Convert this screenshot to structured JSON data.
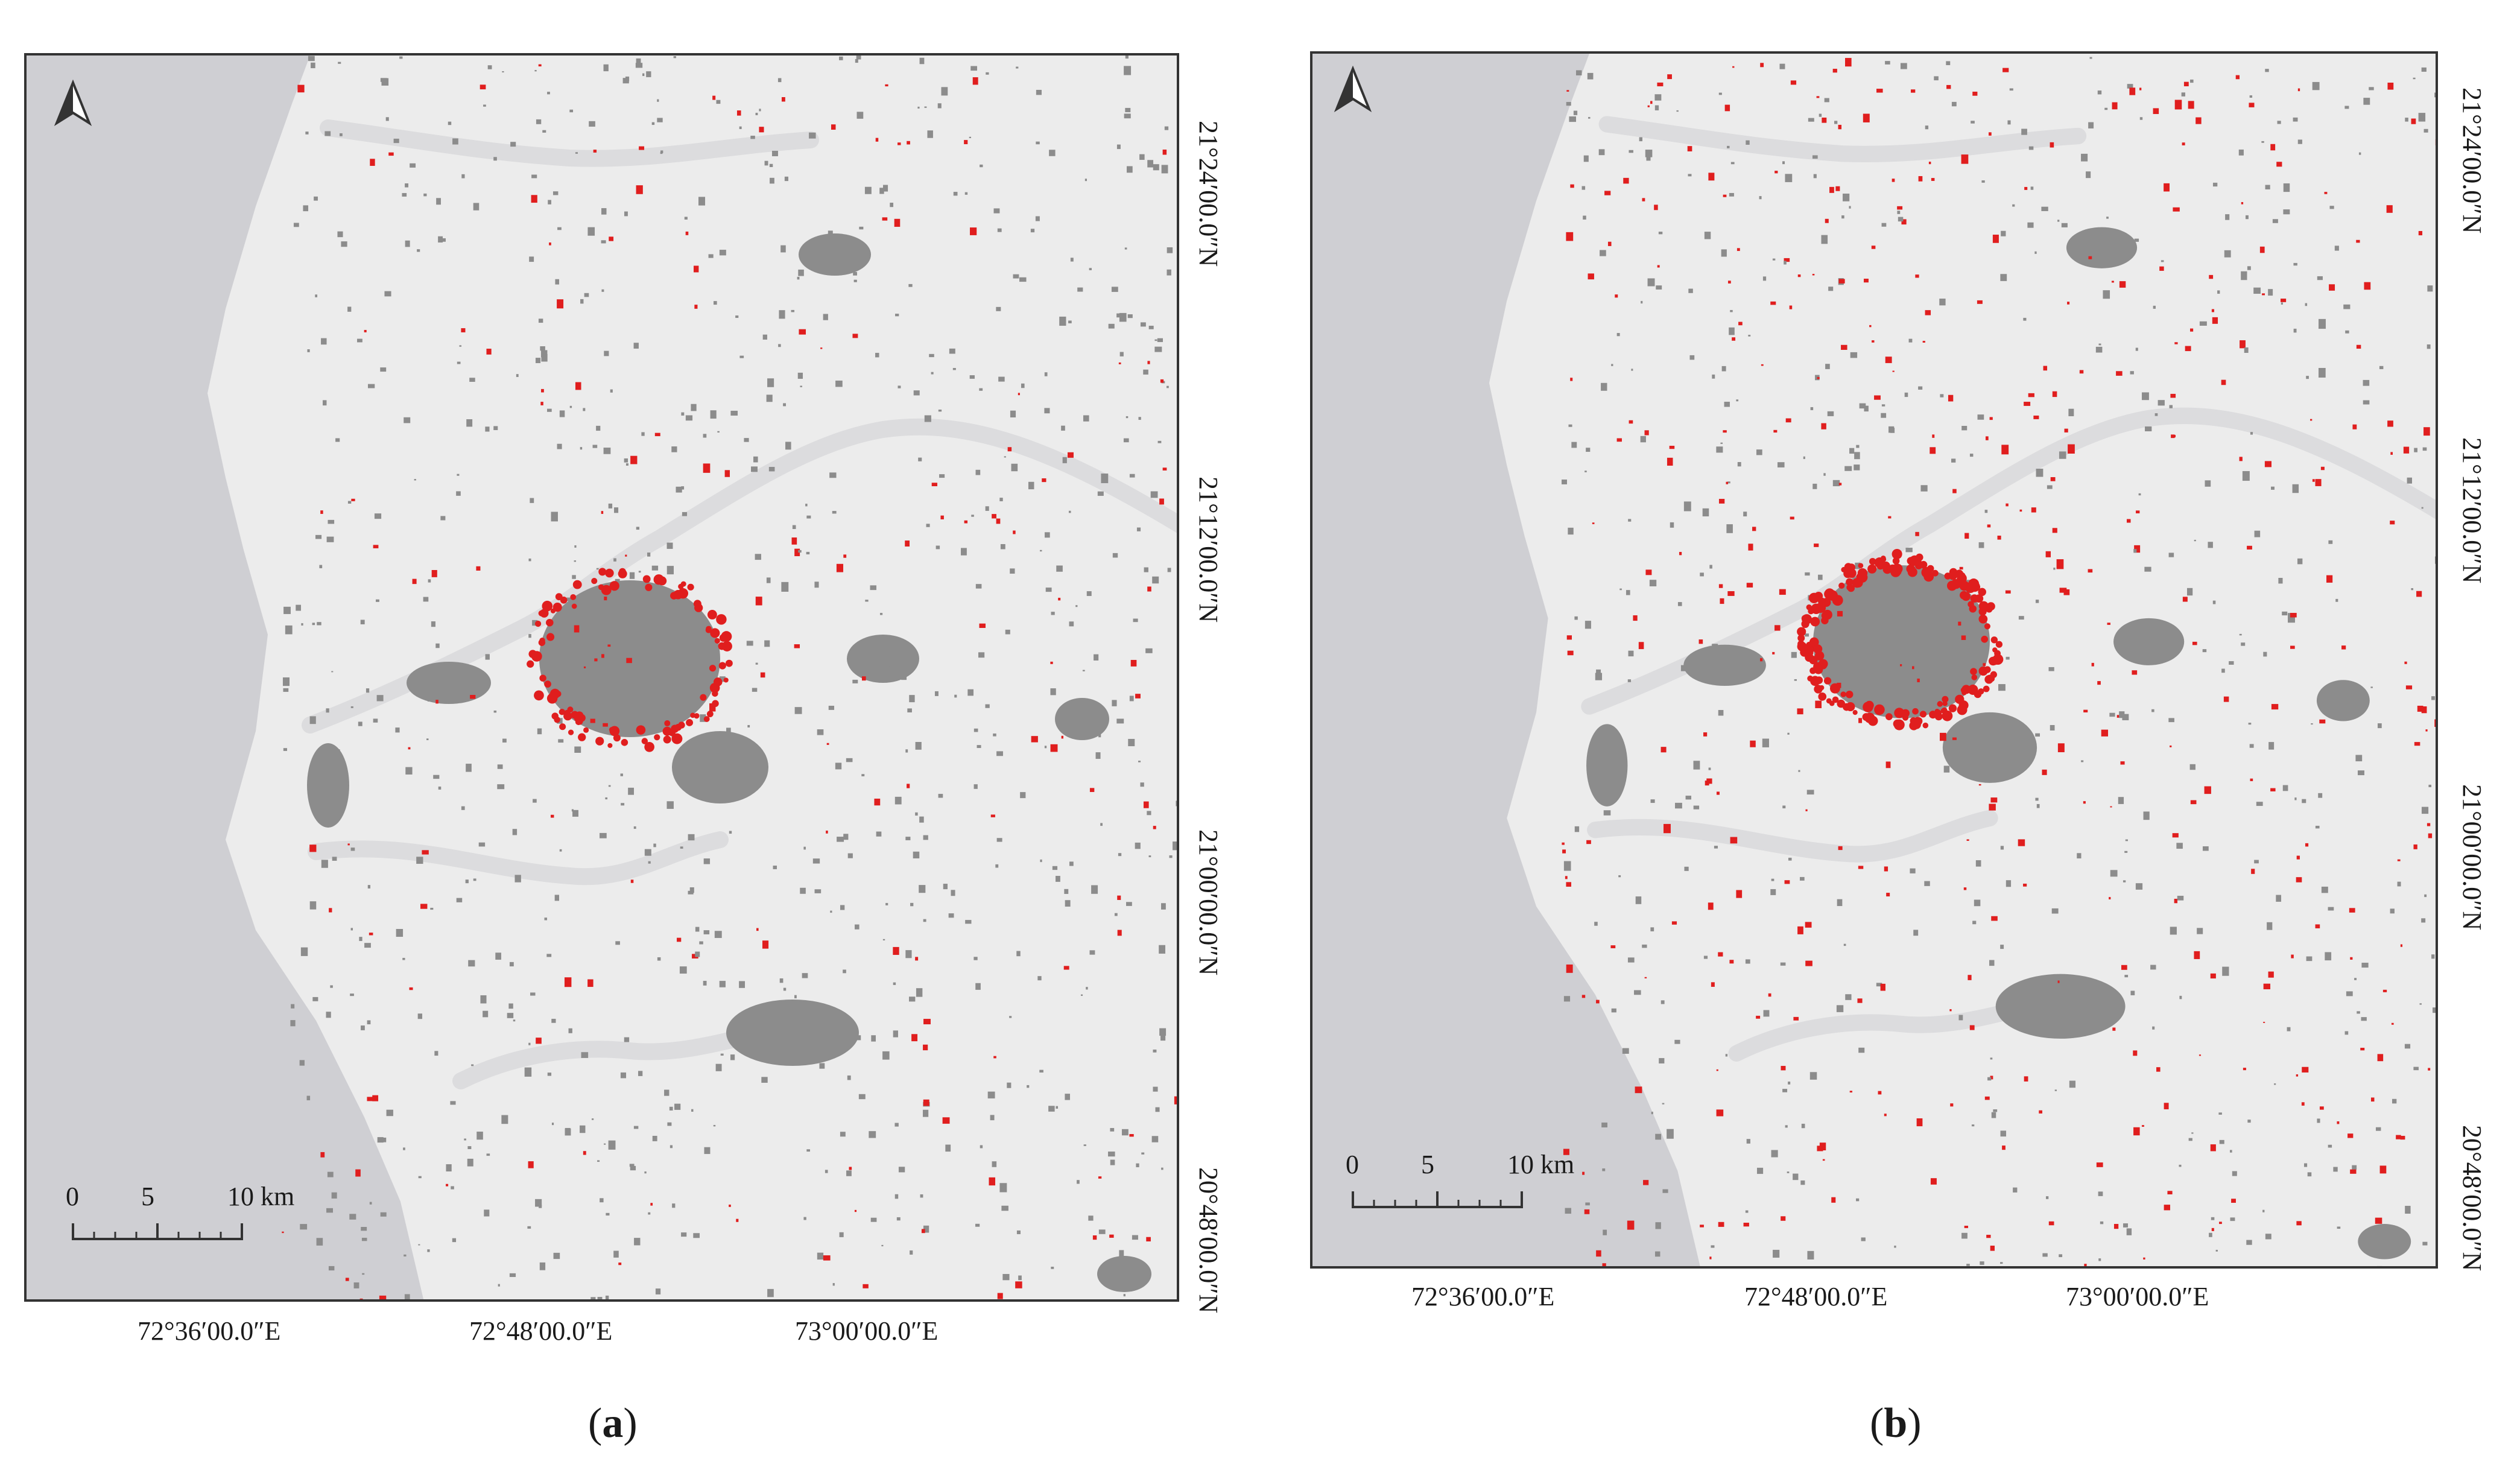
{
  "panels": [
    {
      "id": "a",
      "caption": {
        "open": "(",
        "letter": "a",
        "close": ")"
      },
      "north_arrow_icon": "north-arrow-icon",
      "scale_bar": {
        "labels": [
          "0",
          "5",
          "10 km"
        ]
      },
      "lon_labels": [
        "72°36′00.0″E",
        "72°48′00.0″E",
        "73°00′00.0″E"
      ],
      "lat_labels": [
        "21°24′00.0″N",
        "21°12′00.0″N",
        "21°00′00.0″N",
        "20°48′00.0″N"
      ],
      "hotspot_density": 0.35
    },
    {
      "id": "b",
      "caption": {
        "open": "(",
        "letter": "b",
        "close": ")"
      },
      "north_arrow_icon": "north-arrow-icon",
      "scale_bar": {
        "labels": [
          "0",
          "5",
          "10 km"
        ]
      },
      "lon_labels": [
        "72°36′00.0″E",
        "72°48′00.0″E",
        "73°00′00.0″E"
      ],
      "lat_labels": [
        "21°24′00.0″N",
        "21°12′00.0″N",
        "21°00′00.0″N",
        "20°48′00.0″N"
      ],
      "hotspot_density": 0.85
    }
  ],
  "colors": {
    "sea": "#cfcfd3",
    "land": "#ececec",
    "river": "#dcdcde",
    "builtup": "#8c8c8c",
    "change": "#e01e1e",
    "frame": "#333333"
  }
}
